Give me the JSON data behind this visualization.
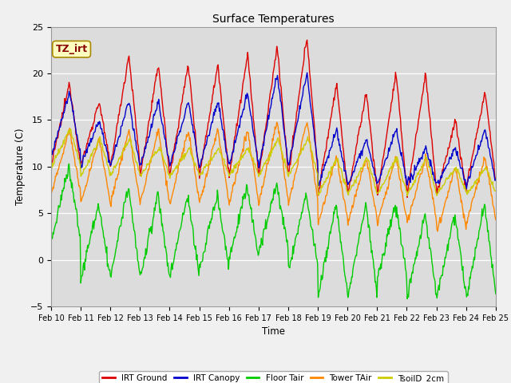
{
  "title": "Surface Temperatures",
  "xlabel": "Time",
  "ylabel": "Temperature (C)",
  "ylim": [
    -5,
    25
  ],
  "plot_bg_color": "#dcdcdc",
  "fig_bg_color": "#f0f0f0",
  "annotation_text": "TZ_irt",
  "annotation_color": "#880000",
  "annotation_bg": "#ffffc0",
  "annotation_border": "#aa8800",
  "lines": {
    "IRT Ground": {
      "color": "#dd0000",
      "lw": 1.0
    },
    "IRT Canopy": {
      "color": "#0000cc",
      "lw": 1.0
    },
    "Floor Tair": {
      "color": "#00cc00",
      "lw": 1.0
    },
    "Tower TAir": {
      "color": "#ff8800",
      "lw": 1.0
    },
    "TsoilD_2cm": {
      "color": "#cccc00",
      "lw": 1.0
    }
  },
  "x_ticks": [
    "Feb 10",
    "Feb 11",
    "Feb 12",
    "Feb 13",
    "Feb 14",
    "Feb 15",
    "Feb 16",
    "Feb 17",
    "Feb 18",
    "Feb 19",
    "Feb 20",
    "Feb 21",
    "Feb 22",
    "Feb 23",
    "Feb 24",
    "Feb 25"
  ],
  "yticks": [
    -5,
    0,
    5,
    10,
    15,
    20,
    25
  ],
  "points_per_day": 48,
  "n_days": 15
}
